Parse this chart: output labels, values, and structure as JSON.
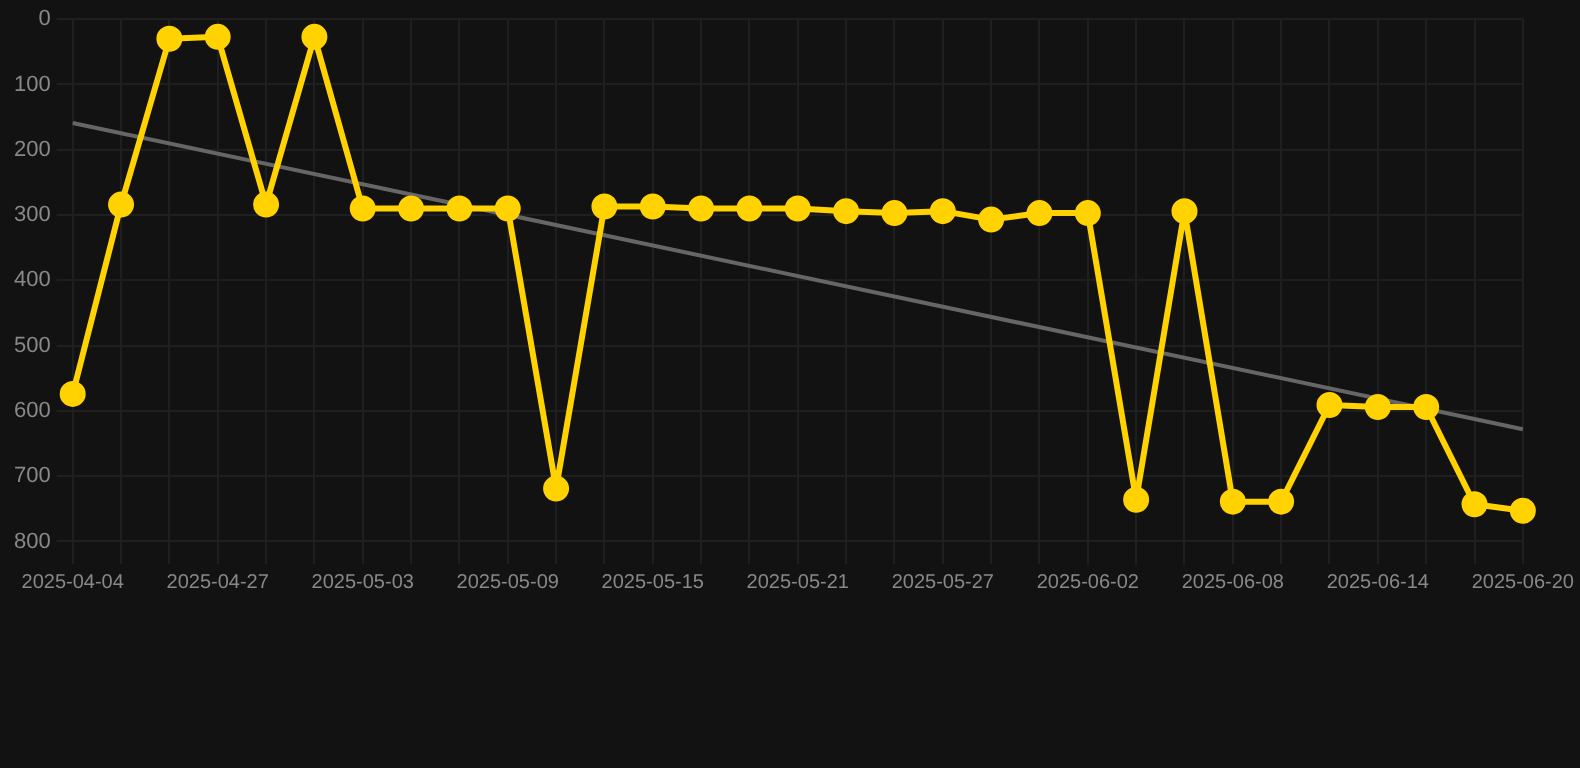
{
  "chart_data": {
    "type": "line",
    "categories": [
      "2025-04-04",
      null,
      null,
      "2025-04-27",
      null,
      null,
      "2025-05-03",
      null,
      null,
      "2025-05-09",
      null,
      null,
      "2025-05-15",
      null,
      null,
      "2025-05-21",
      null,
      null,
      "2025-05-27",
      null,
      null,
      "2025-06-02",
      null,
      null,
      "2025-06-08",
      null,
      null,
      "2025-06-14",
      null,
      null,
      "2025-06-20"
    ],
    "series": [
      {
        "color": "#ffd200",
        "marker": "circle",
        "values": [
          574,
          284,
          30,
          27,
          284,
          27,
          290,
          290,
          290,
          290,
          719,
          287,
          287,
          290,
          290,
          290,
          294,
          297,
          294,
          307,
          297,
          297,
          736,
          294,
          739,
          739,
          591,
          594,
          594,
          743,
          753
        ]
      },
      {
        "type": "line",
        "color": "#666666",
        "marker": "none",
        "values": [
          159,
          null,
          null,
          null,
          null,
          null,
          null,
          null,
          null,
          null,
          null,
          null,
          null,
          null,
          null,
          null,
          null,
          null,
          null,
          null,
          null,
          null,
          null,
          null,
          null,
          null,
          null,
          null,
          null,
          null,
          628
        ]
      }
    ],
    "ylim": [
      810,
      0
    ],
    "yticks": [
      0,
      100,
      200,
      300,
      400,
      500,
      600,
      700,
      800
    ],
    "grid": true,
    "legend": false
  }
}
